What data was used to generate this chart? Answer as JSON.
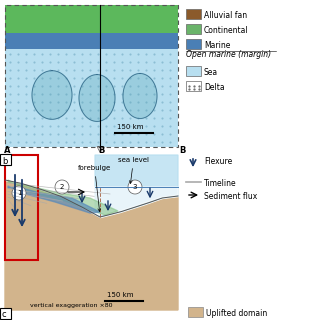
{
  "bg_color": "#ffffff",
  "panel_a_sea": "#b8dff0",
  "panel_a_green": "#5cb85c",
  "panel_a_blue_dark": "#4a7fb5",
  "panel_b_sand": "#d2b48c",
  "red_box": "#cc0000",
  "arrow_color": "#1a3a6b",
  "labels": {
    "alluvial_fan": "Alluvial fan",
    "continental": "Continental",
    "marine": "Marine",
    "open_marine": "Open marine (margin)",
    "sea": "Sea",
    "delta": "Delta",
    "flexure": "Flexure",
    "timeline": "Timeline",
    "sediment_flux": "Sediment flux",
    "sea_level": "sea level",
    "forebulge": "forebulge",
    "scale_a": "150 km",
    "scale_b": "150 km",
    "vert_exag": "vertical exaggeration ×80",
    "uplifted": "Uplifted domain",
    "label_A": "A",
    "label_B_mid": "B",
    "label_B_right": "B",
    "label_b": "b",
    "label_c": "c"
  },
  "colors": {
    "alluvial": "#8B5A2B",
    "continental": "#6ab46a",
    "marine": "#4a7fb5",
    "sea": "#b8dff0",
    "delta_dot": "#888888",
    "green_wedge": "#80c080",
    "blue_wedge": "#5588bb",
    "timeline": "#aaaaaa"
  }
}
